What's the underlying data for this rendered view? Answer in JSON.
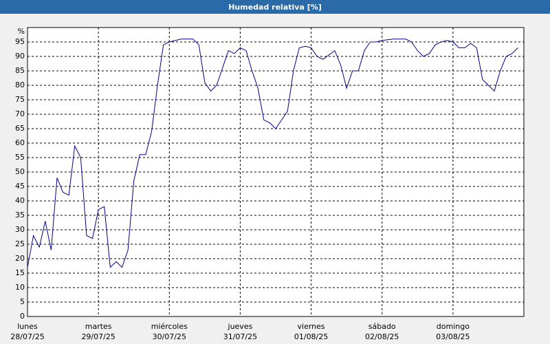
{
  "chart_data": {
    "type": "line",
    "title": "Humedad relativa [%]",
    "ylabel": "%",
    "ylim": [
      0,
      100
    ],
    "yticks": [
      0,
      5,
      10,
      15,
      20,
      25,
      30,
      35,
      40,
      45,
      50,
      55,
      60,
      65,
      70,
      75,
      80,
      85,
      90,
      95
    ],
    "grid": true,
    "color": "#00008b",
    "categories": [
      [
        "lunes",
        "28/07/25"
      ],
      null,
      null,
      null,
      null,
      null,
      null,
      null,
      null,
      null,
      null,
      null,
      [
        "martes",
        "29/07/25"
      ],
      null,
      null,
      null,
      null,
      null,
      null,
      null,
      null,
      null,
      null,
      null,
      [
        "miércoles",
        "30/07/25"
      ],
      null,
      null,
      null,
      null,
      null,
      null,
      null,
      null,
      null,
      null,
      null,
      [
        "jueves",
        "31/07/25"
      ],
      null,
      null,
      null,
      null,
      null,
      null,
      null,
      null,
      null,
      null,
      null,
      [
        "viernes",
        "01/08/25"
      ],
      null,
      null,
      null,
      null,
      null,
      null,
      null,
      null,
      null,
      null,
      null,
      [
        "sábado",
        "02/08/25"
      ],
      null,
      null,
      null,
      null,
      null,
      null,
      null,
      null,
      null,
      null,
      null,
      [
        "domingo",
        "03/08/25"
      ],
      null,
      null,
      null,
      null,
      null,
      null,
      null,
      null,
      null,
      null,
      null
    ],
    "values": [
      17,
      28,
      24,
      33,
      23,
      48,
      43,
      42,
      59,
      55,
      28,
      27,
      37,
      38,
      17,
      19,
      17,
      23,
      47,
      56,
      56,
      64,
      80,
      94,
      95,
      95.5,
      96,
      96,
      96,
      94,
      81,
      78,
      80,
      86,
      92,
      91,
      93,
      92,
      85,
      79,
      68,
      67,
      65,
      68,
      71,
      85,
      93,
      93.5,
      93,
      90,
      89,
      90.5,
      92,
      87,
      79,
      85,
      85,
      92,
      95,
      95,
      95.5,
      95.8,
      96,
      96,
      96,
      95,
      92,
      90,
      91,
      94,
      95,
      95.5,
      95,
      93,
      93,
      94.5,
      93,
      82,
      80,
      78,
      85,
      90,
      91,
      93
    ]
  }
}
